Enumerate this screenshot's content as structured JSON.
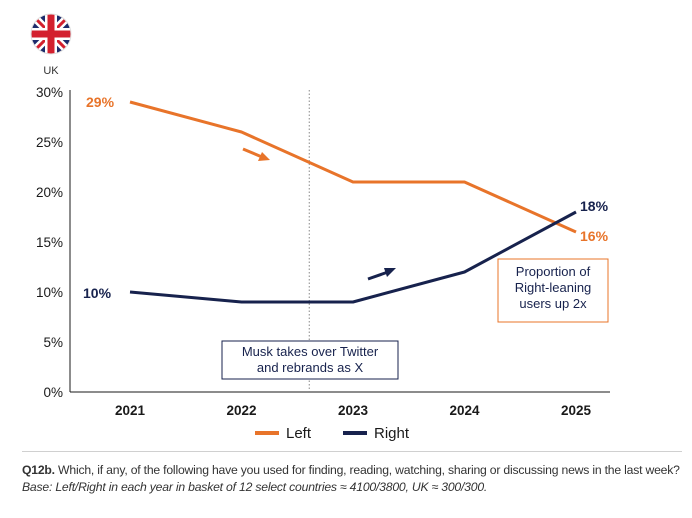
{
  "region": "UK",
  "colors": {
    "left": "#e8742a",
    "right": "#17224d",
    "axis": "#1a1a1a",
    "grid": "#888888"
  },
  "footer": {
    "question": "Q12b.",
    "text": " Which, if any, of the following have you used for finding, reading, watching, sharing or discussing news in the last week? ",
    "base": "Base: Left/Right in each year in basket of 12 select countries ≈ 4100/3800, UK ≈ 300/300."
  },
  "chart_data": {
    "type": "line",
    "title": "",
    "xlabel": "",
    "ylabel": "",
    "categories": [
      "2021",
      "2022",
      "2023",
      "2024",
      "2025"
    ],
    "yticks": [
      "0%",
      "5%",
      "10%",
      "15%",
      "20%",
      "25%",
      "30%"
    ],
    "ylim": [
      0,
      30
    ],
    "series": [
      {
        "name": "Left",
        "values": [
          29,
          26,
          21,
          21,
          16
        ],
        "color": "#e8742a"
      },
      {
        "name": "Right",
        "values": [
          10,
          9,
          9,
          12,
          18
        ],
        "color": "#17224d"
      }
    ],
    "data_labels": {
      "left_start": "29%",
      "left_end": "16%",
      "right_start": "10%",
      "right_end": "18%"
    },
    "annotations": {
      "event": [
        "Musk takes over Twitter",
        "and rebrands as X"
      ],
      "event_between": [
        "2022",
        "2023"
      ],
      "callout": [
        "Proportion of",
        "Right-leaning",
        "users up 2x"
      ]
    },
    "legend": "bottom"
  }
}
